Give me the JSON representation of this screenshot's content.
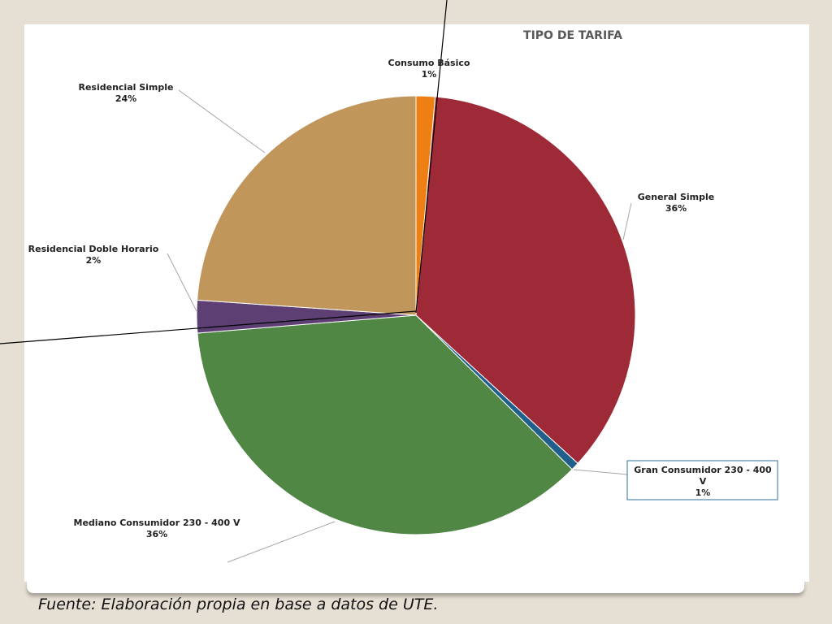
{
  "slide": {
    "source_note": "Fuente: Elaboración propia en base a datos de UTE."
  },
  "chart_data": {
    "type": "pie",
    "title": "TIPO DE TARIFA",
    "legend": "none",
    "slices": [
      {
        "label_lines": [
          "Consumo Básico"
        ],
        "percent_label": "1%",
        "value": 1.4,
        "color": "#ee7f15"
      },
      {
        "label_lines": [
          "General Simple"
        ],
        "percent_label": "36%",
        "value": 35.4,
        "color": "#9e2937"
      },
      {
        "label_lines": [
          "Gran Consumidor 230 - 400",
          "V"
        ],
        "percent_label": "1%",
        "value": 0.6,
        "color": "#1f5f8a"
      },
      {
        "label_lines": [
          "Mediano Consumidor  230 - 400 V"
        ],
        "percent_label": "36%",
        "value": 36.3,
        "color": "#508744"
      },
      {
        "label_lines": [
          "Residencial Doble Horario"
        ],
        "percent_label": "2%",
        "value": 2.4,
        "color": "#5e3f73"
      },
      {
        "label_lines": [
          "Residencial Simple"
        ],
        "percent_label": "24%",
        "value": 23.9,
        "color": "#c0965b"
      }
    ]
  }
}
